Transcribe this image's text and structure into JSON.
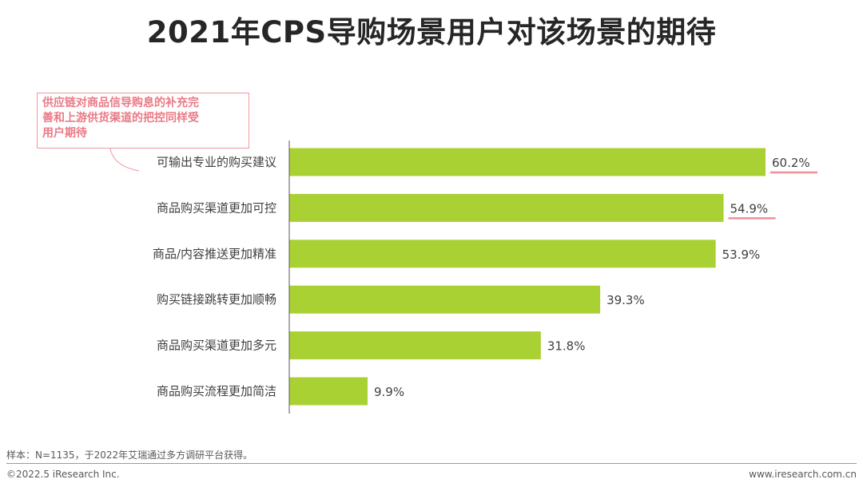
{
  "title": "2021年CPS导购场景用户对该场景的期待",
  "callout": {
    "line1": "供应链对商品信导购息的补充完",
    "line2": "善和上游供货渠道的把控同样受",
    "line3": "用户期待"
  },
  "chart_data": {
    "type": "bar",
    "orientation": "horizontal",
    "categories": [
      "可输出专业的购买建议",
      "商品购买渠道更加可控",
      "商品/内容推送更加精准",
      "购买链接跳转更加顺畅",
      "商品购买渠道更加多元",
      "商品购买流程更加简洁"
    ],
    "values": [
      60.2,
      54.9,
      53.9,
      39.3,
      31.8,
      9.9
    ],
    "value_labels": [
      "60.2%",
      "54.9%",
      "53.9%",
      "39.3%",
      "31.8%",
      "9.9%"
    ],
    "highlighted": [
      0,
      1
    ],
    "xlim": [
      0,
      70
    ],
    "bar_color": "#a9d134",
    "highlight_color": "#ef8f99",
    "grid": false
  },
  "footer": {
    "sample_note": "样本：N=1135，于2022年艾瑞通过多方调研平台获得。",
    "copyright": "©2022.5 iResearch Inc.",
    "website": "www.iresearch.com.cn"
  }
}
